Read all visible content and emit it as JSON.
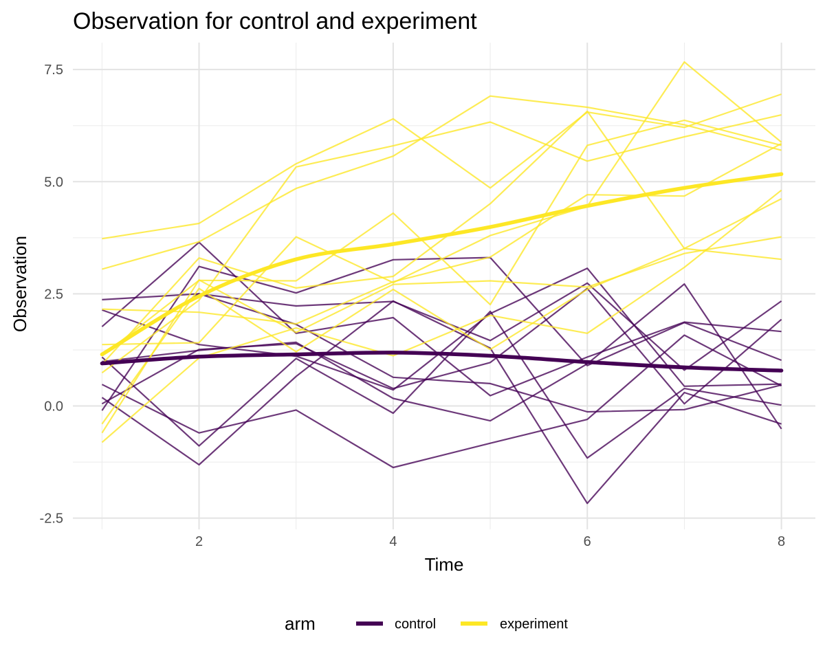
{
  "chart_data": {
    "type": "line",
    "title": "Observation for control and experiment",
    "xlabel": "Time",
    "ylabel": "Observation",
    "xlim": [
      0.7,
      8.35
    ],
    "ylim": [
      -2.75,
      8.1
    ],
    "x_ticks": [
      2,
      4,
      6,
      8
    ],
    "x_tick_labels": [
      "2",
      "4",
      "6",
      "8"
    ],
    "y_ticks": [
      -2.5,
      0.0,
      2.5,
      5.0,
      7.5
    ],
    "y_tick_labels": [
      "-2.5",
      "0.0",
      "2.5",
      "5.0",
      "7.5"
    ],
    "grid": true,
    "legend": {
      "title": "arm",
      "position": "bottom",
      "entries": [
        {
          "label": "control",
          "color": "#440154"
        },
        {
          "label": "experiment",
          "color": "#fde725"
        }
      ]
    },
    "x": [
      1,
      2,
      3,
      4,
      5,
      6,
      7,
      8
    ],
    "series": [
      {
        "group": "control",
        "values": [
          2.37,
          2.5,
          2.23,
          2.33,
          1.46,
          2.74,
          0.8,
          2.34
        ]
      },
      {
        "group": "control",
        "values": [
          1.14,
          2.5,
          1.82,
          0.64,
          0.5,
          -0.13,
          -0.08,
          0.47
        ]
      },
      {
        "group": "control",
        "values": [
          1.77,
          3.65,
          1.62,
          1.97,
          0.23,
          1.09,
          1.87,
          1.66
        ]
      },
      {
        "group": "control",
        "values": [
          2.14,
          1.37,
          1.11,
          0.36,
          2.06,
          3.07,
          0.44,
          0.49
        ]
      },
      {
        "group": "control",
        "values": [
          0.99,
          1.24,
          1.42,
          0.17,
          -0.33,
          0.94,
          2.72,
          -0.51
        ]
      },
      {
        "group": "control",
        "values": [
          0.48,
          -0.6,
          -0.09,
          -1.37,
          -0.83,
          -0.3,
          1.58,
          0.45
        ]
      },
      {
        "group": "control",
        "values": [
          0.19,
          -1.31,
          0.66,
          2.34,
          1.29,
          -2.17,
          0.3,
          -0.4
        ]
      },
      {
        "group": "control",
        "values": [
          -0.1,
          3.11,
          2.52,
          3.26,
          3.31,
          0.9,
          1.86,
          1.02
        ]
      },
      {
        "group": "control",
        "values": [
          0.05,
          1.26,
          1.39,
          0.39,
          0.97,
          2.62,
          0.05,
          1.93
        ]
      },
      {
        "group": "control",
        "values": [
          1.09,
          -0.89,
          1.06,
          -0.16,
          2.11,
          -1.16,
          0.39,
          0.02
        ]
      },
      {
        "group": "experiment",
        "values": [
          3.73,
          4.07,
          5.4,
          6.4,
          4.86,
          6.55,
          6.21,
          6.95
        ]
      },
      {
        "group": "experiment",
        "values": [
          3.05,
          3.66,
          4.85,
          5.57,
          6.91,
          6.66,
          6.27,
          5.7
        ]
      },
      {
        "group": "experiment",
        "values": [
          1.12,
          2.8,
          2.79,
          4.3,
          2.26,
          5.81,
          6.37,
          5.81
        ]
      },
      {
        "group": "experiment",
        "values": [
          0.74,
          2.36,
          5.33,
          5.8,
          6.33,
          5.46,
          6.0,
          6.49
        ]
      },
      {
        "group": "experiment",
        "values": [
          2.16,
          2.09,
          1.83,
          2.77,
          3.32,
          4.71,
          4.68,
          5.85
        ]
      },
      {
        "group": "experiment",
        "values": [
          1.37,
          1.41,
          3.77,
          2.75,
          3.8,
          4.45,
          7.67,
          5.88
        ]
      },
      {
        "group": "experiment",
        "values": [
          -0.4,
          2.62,
          1.21,
          2.6,
          1.26,
          2.6,
          3.51,
          3.27
        ]
      },
      {
        "group": "experiment",
        "values": [
          -0.81,
          1.07,
          1.74,
          1.12,
          2.02,
          1.62,
          3.09,
          4.81
        ]
      },
      {
        "group": "experiment",
        "values": [
          -0.6,
          2.81,
          1.64,
          2.71,
          2.79,
          2.65,
          3.4,
          3.77
        ]
      },
      {
        "group": "experiment",
        "values": [
          0.93,
          3.3,
          2.63,
          2.89,
          4.51,
          6.57,
          3.51,
          4.62
        ]
      }
    ],
    "trend_lines": [
      {
        "group": "control",
        "values": [
          0.95,
          1.1,
          1.15,
          1.19,
          1.12,
          0.98,
          0.86,
          0.79
        ]
      },
      {
        "group": "experiment",
        "values": [
          1.15,
          2.45,
          3.27,
          3.61,
          3.99,
          4.46,
          4.86,
          5.17
        ]
      }
    ]
  }
}
